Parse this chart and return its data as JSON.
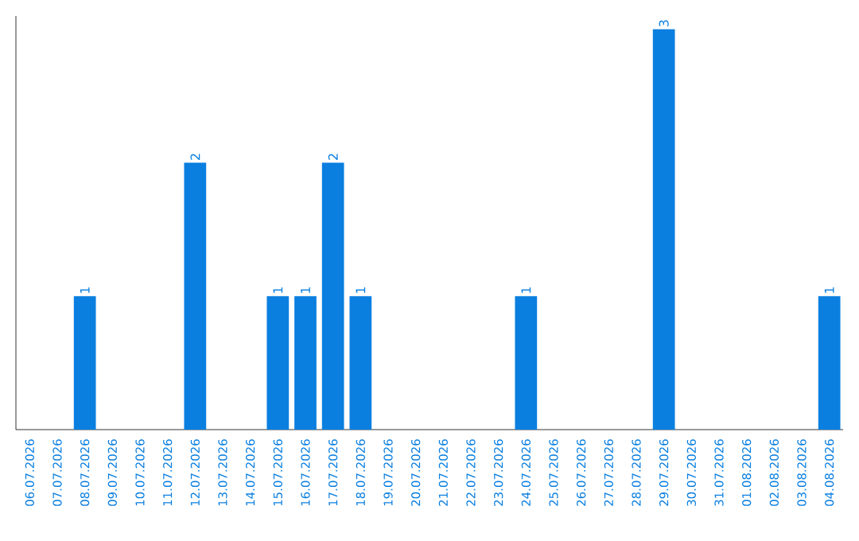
{
  "chart_data": {
    "type": "bar",
    "categories": [
      "06.07.2026",
      "07.07.2026",
      "08.07.2026",
      "09.07.2026",
      "10.07.2026",
      "11.07.2026",
      "12.07.2026",
      "13.07.2026",
      "14.07.2026",
      "15.07.2026",
      "16.07.2026",
      "17.07.2026",
      "18.07.2026",
      "19.07.2026",
      "20.07.2026",
      "21.07.2026",
      "22.07.2026",
      "23.07.2026",
      "24.07.2026",
      "25.07.2026",
      "26.07.2026",
      "27.07.2026",
      "28.07.2026",
      "29.07.2026",
      "30.07.2026",
      "31.07.2026",
      "01.08.2026",
      "02.08.2026",
      "03.08.2026",
      "04.08.2026"
    ],
    "values": [
      0,
      0,
      1,
      0,
      0,
      0,
      2,
      0,
      0,
      1,
      1,
      2,
      1,
      0,
      0,
      0,
      0,
      0,
      1,
      0,
      0,
      0,
      0,
      3,
      0,
      0,
      0,
      0,
      0,
      1
    ],
    "value_labels": [
      null,
      null,
      "1",
      null,
      null,
      null,
      "2",
      null,
      null,
      "1",
      "1",
      "2",
      "1",
      null,
      null,
      null,
      null,
      null,
      "1",
      null,
      null,
      null,
      null,
      "3",
      null,
      null,
      null,
      null,
      null,
      "1"
    ],
    "color": "#0a7fe0",
    "ylim": [
      0,
      3.1
    ]
  }
}
